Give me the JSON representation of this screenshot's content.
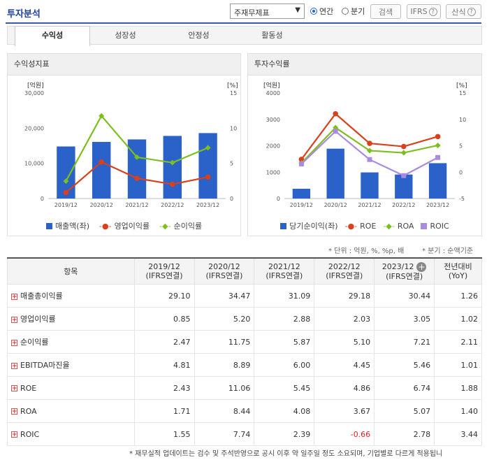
{
  "header": {
    "title": "투자분석",
    "select_value": "주재무제표",
    "radio_annual": "연간",
    "radio_quarter": "분기",
    "search_button": "검색",
    "ifrs_button": "IFRS",
    "formula_button": "산식"
  },
  "tabs": [
    "수익성",
    "성장성",
    "안정성",
    "활동성"
  ],
  "left_panel": {
    "title": "수익성지표",
    "left_unit": "[억원]",
    "right_unit": "[%]",
    "legend": [
      "매출액(좌)",
      "영업이익률",
      "순이익률"
    ]
  },
  "right_panel": {
    "title": "투자수익률",
    "left_unit": "[억원]",
    "right_unit": "[%]",
    "legend": [
      "당기순이익(좌)",
      "ROE",
      "ROA",
      "ROIC"
    ]
  },
  "chart_data": [
    {
      "type": "bar",
      "title": "수익성지표",
      "categories": [
        "2019/12",
        "2020/12",
        "2021/12",
        "2022/12",
        "2023/12"
      ],
      "left_axis": {
        "unit": "[억원]",
        "ticks": [
          "0",
          "10,000",
          "20,000",
          "30,000"
        ],
        "ylim": [
          0,
          30000
        ]
      },
      "right_axis": {
        "unit": "[%]",
        "ticks": [
          "0",
          "5",
          "10",
          "15"
        ],
        "ylim": [
          0,
          15
        ]
      },
      "series": [
        {
          "name": "매출액(좌)",
          "kind": "bar",
          "axis": "left",
          "color": "#2a62c9",
          "values": [
            14800,
            16100,
            16800,
            17800,
            18600
          ]
        },
        {
          "name": "영업이익률",
          "kind": "line",
          "axis": "right",
          "color": "#d9401c",
          "values": [
            0.85,
            5.2,
            2.88,
            2.03,
            3.05
          ]
        },
        {
          "name": "순이익률",
          "kind": "line",
          "axis": "right",
          "color": "#7cbf1f",
          "values": [
            2.47,
            11.75,
            5.87,
            5.1,
            7.21
          ]
        }
      ]
    },
    {
      "type": "bar",
      "title": "투자수익률",
      "categories": [
        "2019/12",
        "2020/12",
        "2021/12",
        "2022/12",
        "2023/12"
      ],
      "left_axis": {
        "unit": "[억원]",
        "ticks": [
          "0",
          "1000",
          "2000",
          "3000",
          "4000"
        ],
        "ylim": [
          0,
          4000
        ]
      },
      "right_axis": {
        "unit": "[%]",
        "ticks": [
          "-5",
          "0",
          "5",
          "10",
          "15"
        ],
        "ylim": [
          -5,
          15
        ]
      },
      "series": [
        {
          "name": "당기순이익(좌)",
          "kind": "bar",
          "axis": "left",
          "color": "#2a62c9",
          "values": [
            370,
            1890,
            990,
            910,
            1340
          ]
        },
        {
          "name": "ROE",
          "kind": "line",
          "axis": "right",
          "color": "#d9401c",
          "values": [
            2.43,
            11.06,
            5.45,
            4.86,
            6.74
          ]
        },
        {
          "name": "ROA",
          "kind": "line",
          "axis": "right",
          "color": "#7cbf1f",
          "values": [
            1.71,
            8.44,
            4.08,
            3.67,
            5.07
          ]
        },
        {
          "name": "ROIC",
          "kind": "line",
          "axis": "right",
          "color": "#a98be0",
          "values": [
            1.55,
            7.74,
            2.39,
            -0.66,
            2.78
          ]
        }
      ]
    }
  ],
  "notes": {
    "unit": "* 단위 : 억원, %, %p, 배",
    "quarter": "* 분기 : 순액기준"
  },
  "table": {
    "header_item": "항목",
    "columns": [
      {
        "period": "2019/12",
        "basis": "(IFRS연결)"
      },
      {
        "period": "2020/12",
        "basis": "(IFRS연결)"
      },
      {
        "period": "2021/12",
        "basis": "(IFRS연결)"
      },
      {
        "period": "2022/12",
        "basis": "(IFRS연결)"
      },
      {
        "period": "2023/12",
        "basis": "(IFRS연결)"
      }
    ],
    "yoy_header": "전년대비",
    "yoy_sub": "(YoY)",
    "rows": [
      {
        "label": "매출총이익률",
        "values": [
          "29.10",
          "34.47",
          "31.09",
          "29.18",
          "30.44"
        ],
        "yoy": "1.26"
      },
      {
        "label": "영업이익률",
        "values": [
          "0.85",
          "5.20",
          "2.88",
          "2.03",
          "3.05"
        ],
        "yoy": "1.02"
      },
      {
        "label": "순이익률",
        "values": [
          "2.47",
          "11.75",
          "5.87",
          "5.10",
          "7.21"
        ],
        "yoy": "2.11"
      },
      {
        "label": "EBITDA마진율",
        "values": [
          "4.81",
          "8.89",
          "6.00",
          "4.45",
          "5.46"
        ],
        "yoy": "1.01"
      },
      {
        "label": "ROE",
        "values": [
          "2.43",
          "11.06",
          "5.45",
          "4.86",
          "6.74"
        ],
        "yoy": "1.88"
      },
      {
        "label": "ROA",
        "values": [
          "1.71",
          "8.44",
          "4.08",
          "3.67",
          "5.07"
        ],
        "yoy": "1.40"
      },
      {
        "label": "ROIC",
        "values": [
          "1.55",
          "7.74",
          "2.39",
          "-0.66",
          "2.78"
        ],
        "yoy": "3.44"
      }
    ],
    "negative_color": "#e02020"
  },
  "footer": "* 재무실적 업데이트는 검수 및 주석반영으로 공시 이후 약 일주일 정도 소요되며, 기업별로 다르게 적용됩니"
}
